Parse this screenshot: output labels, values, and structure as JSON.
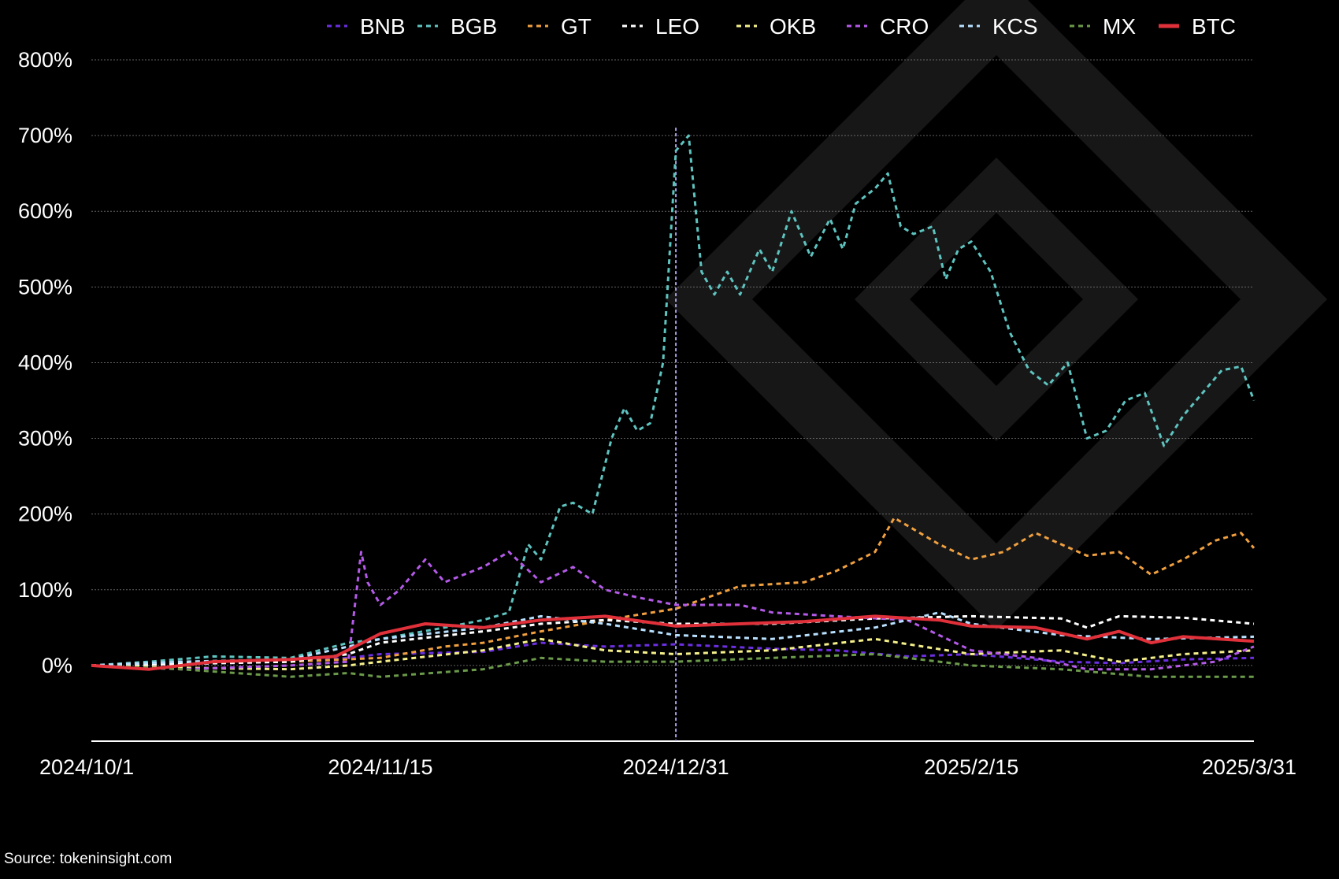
{
  "colors": {
    "background": "#000000",
    "grid": "#8c8c8c",
    "text": "#ffffff",
    "watermark": "#1a1a1a",
    "marker_line": "#a9a3e6"
  },
  "source": "Source: tokeninsight.com",
  "chart_data": {
    "type": "line",
    "title": "",
    "xlabel": "",
    "ylabel": "",
    "x_ticks": [
      "2024/10/1",
      "2024/11/15",
      "2024/12/31",
      "2025/2/15",
      "2025/3/31"
    ],
    "x_range": [
      "2024/10/1",
      "2025/3/31"
    ],
    "y_ticks": [
      0,
      100,
      200,
      300,
      400,
      500,
      600,
      700,
      800
    ],
    "y_tick_format": "%",
    "ylim": [
      -100,
      800
    ],
    "grid": true,
    "legend": "top",
    "vertical_marker": "2024/12/31",
    "watermark": "binance-logo",
    "series": [
      {
        "name": "BNB",
        "color": "#6b2fe0",
        "style": "dashed",
        "points": [
          [
            "2024/10/1",
            0
          ],
          [
            "2024/10/15",
            2
          ],
          [
            "2024/11/1",
            5
          ],
          [
            "2024/11/10",
            10
          ],
          [
            "2024/11/15",
            15
          ],
          [
            "2024/12/1",
            18
          ],
          [
            "2024/12/10",
            30
          ],
          [
            "2024/12/20",
            25
          ],
          [
            "2024/12/31",
            28
          ],
          [
            "2025/1/15",
            22
          ],
          [
            "2025/1/25",
            20
          ],
          [
            "2025/2/5",
            12
          ],
          [
            "2025/2/15",
            15
          ],
          [
            "2025/3/1",
            5
          ],
          [
            "2025/3/10",
            3
          ],
          [
            "2025/3/20",
            8
          ],
          [
            "2025/3/31",
            10
          ]
        ]
      },
      {
        "name": "BGB",
        "color": "#5ec4c0",
        "style": "dashed",
        "points": [
          [
            "2024/10/1",
            0
          ],
          [
            "2024/10/10",
            5
          ],
          [
            "2024/10/20",
            12
          ],
          [
            "2024/11/1",
            10
          ],
          [
            "2024/11/10",
            30
          ],
          [
            "2024/11/15",
            35
          ],
          [
            "2024/11/25",
            50
          ],
          [
            "2024/12/1",
            60
          ],
          [
            "2024/12/5",
            70
          ],
          [
            "2024/12/8",
            160
          ],
          [
            "2024/12/10",
            140
          ],
          [
            "2024/12/13",
            210
          ],
          [
            "2024/12/15",
            215
          ],
          [
            "2024/12/18",
            200
          ],
          [
            "2024/12/21",
            300
          ],
          [
            "2024/12/23",
            340
          ],
          [
            "2024/12/25",
            310
          ],
          [
            "2024/12/27",
            320
          ],
          [
            "2024/12/29",
            400
          ],
          [
            "2024/12/31",
            680
          ],
          [
            "2025/1/2",
            700
          ],
          [
            "2025/1/4",
            520
          ],
          [
            "2025/1/6",
            490
          ],
          [
            "2025/1/8",
            520
          ],
          [
            "2025/1/10",
            490
          ],
          [
            "2025/1/13",
            550
          ],
          [
            "2025/1/15",
            520
          ],
          [
            "2025/1/18",
            600
          ],
          [
            "2025/1/21",
            540
          ],
          [
            "2025/1/24",
            590
          ],
          [
            "2025/1/26",
            550
          ],
          [
            "2025/1/28",
            610
          ],
          [
            "2025/1/31",
            630
          ],
          [
            "2025/2/2",
            650
          ],
          [
            "2025/2/4",
            580
          ],
          [
            "2025/2/6",
            570
          ],
          [
            "2025/2/9",
            580
          ],
          [
            "2025/2/11",
            510
          ],
          [
            "2025/2/13",
            550
          ],
          [
            "2025/2/15",
            560
          ],
          [
            "2025/2/18",
            520
          ],
          [
            "2025/2/21",
            440
          ],
          [
            "2025/2/24",
            390
          ],
          [
            "2025/2/27",
            370
          ],
          [
            "2025/3/2",
            400
          ],
          [
            "2025/3/5",
            300
          ],
          [
            "2025/3/8",
            310
          ],
          [
            "2025/3/11",
            350
          ],
          [
            "2025/3/14",
            360
          ],
          [
            "2025/3/17",
            290
          ],
          [
            "2025/3/20",
            330
          ],
          [
            "2025/3/23",
            360
          ],
          [
            "2025/3/26",
            390
          ],
          [
            "2025/3/29",
            395
          ],
          [
            "2025/3/31",
            350
          ]
        ]
      },
      {
        "name": "GT",
        "color": "#f0a040",
        "style": "dashed",
        "points": [
          [
            "2024/10/1",
            0
          ],
          [
            "2024/10/15",
            3
          ],
          [
            "2024/11/1",
            5
          ],
          [
            "2024/11/15",
            10
          ],
          [
            "2024/11/25",
            25
          ],
          [
            "2024/12/1",
            30
          ],
          [
            "2024/12/10",
            45
          ],
          [
            "2024/12/20",
            60
          ],
          [
            "2024/12/31",
            75
          ],
          [
            "2025/1/5",
            90
          ],
          [
            "2025/1/10",
            105
          ],
          [
            "2025/1/20",
            110
          ],
          [
            "2025/1/25",
            125
          ],
          [
            "2025/1/31",
            150
          ],
          [
            "2025/2/3",
            195
          ],
          [
            "2025/2/6",
            180
          ],
          [
            "2025/2/10",
            160
          ],
          [
            "2025/2/15",
            140
          ],
          [
            "2025/2/20",
            150
          ],
          [
            "2025/2/25",
            175
          ],
          [
            "2025/3/1",
            160
          ],
          [
            "2025/3/5",
            145
          ],
          [
            "2025/3/10",
            150
          ],
          [
            "2025/3/15",
            120
          ],
          [
            "2025/3/20",
            140
          ],
          [
            "2025/3/25",
            165
          ],
          [
            "2025/3/29",
            175
          ],
          [
            "2025/3/31",
            155
          ]
        ]
      },
      {
        "name": "LEO",
        "color": "#ffffff",
        "style": "dashed",
        "points": [
          [
            "2024/10/1",
            0
          ],
          [
            "2024/10/15",
            2
          ],
          [
            "2024/11/1",
            5
          ],
          [
            "2024/11/10",
            15
          ],
          [
            "2024/11/15",
            30
          ],
          [
            "2024/12/1",
            45
          ],
          [
            "2024/12/10",
            55
          ],
          [
            "2024/12/20",
            60
          ],
          [
            "2024/12/31",
            55
          ],
          [
            "2025/1/15",
            55
          ],
          [
            "2025/1/31",
            62
          ],
          [
            "2025/2/15",
            65
          ],
          [
            "2025/3/1",
            62
          ],
          [
            "2025/3/5",
            50
          ],
          [
            "2025/3/10",
            65
          ],
          [
            "2025/3/20",
            63
          ],
          [
            "2025/3/31",
            55
          ]
        ]
      },
      {
        "name": "OKB",
        "color": "#f5f08a",
        "style": "dashed",
        "points": [
          [
            "2024/10/1",
            0
          ],
          [
            "2024/10/15",
            -3
          ],
          [
            "2024/11/1",
            -5
          ],
          [
            "2024/11/10",
            0
          ],
          [
            "2024/11/15",
            5
          ],
          [
            "2024/12/1",
            20
          ],
          [
            "2024/12/10",
            35
          ],
          [
            "2024/12/20",
            20
          ],
          [
            "2024/12/31",
            15
          ],
          [
            "2025/1/15",
            20
          ],
          [
            "2025/1/31",
            35
          ],
          [
            "2025/2/15",
            15
          ],
          [
            "2025/3/1",
            20
          ],
          [
            "2025/3/10",
            5
          ],
          [
            "2025/3/20",
            15
          ],
          [
            "2025/3/31",
            20
          ]
        ]
      },
      {
        "name": "CRO",
        "color": "#b45ae8",
        "style": "dashed",
        "points": [
          [
            "2024/10/1",
            0
          ],
          [
            "2024/10/15",
            -5
          ],
          [
            "2024/11/1",
            0
          ],
          [
            "2024/11/10",
            5
          ],
          [
            "2024/11/12",
            150
          ],
          [
            "2024/11/13",
            110
          ],
          [
            "2024/11/15",
            80
          ],
          [
            "2024/11/18",
            100
          ],
          [
            "2024/11/22",
            140
          ],
          [
            "2024/11/25",
            110
          ],
          [
            "2024/12/1",
            130
          ],
          [
            "2024/12/5",
            150
          ],
          [
            "2024/12/10",
            110
          ],
          [
            "2024/12/15",
            130
          ],
          [
            "2024/12/20",
            100
          ],
          [
            "2024/12/25",
            90
          ],
          [
            "2024/12/31",
            80
          ],
          [
            "2025/1/10",
            80
          ],
          [
            "2025/1/15",
            70
          ],
          [
            "2025/1/25",
            65
          ],
          [
            "2025/2/5",
            60
          ],
          [
            "2025/2/15",
            20
          ],
          [
            "2025/2/25",
            10
          ],
          [
            "2025/3/5",
            -5
          ],
          [
            "2025/3/15",
            -5
          ],
          [
            "2025/3/25",
            5
          ],
          [
            "2025/3/31",
            25
          ]
        ]
      },
      {
        "name": "KCS",
        "color": "#b8e0ff",
        "style": "dashed",
        "points": [
          [
            "2024/10/1",
            0
          ],
          [
            "2024/10/15",
            5
          ],
          [
            "2024/11/1",
            8
          ],
          [
            "2024/11/10",
            25
          ],
          [
            "2024/11/15",
            35
          ],
          [
            "2024/12/1",
            50
          ],
          [
            "2024/12/10",
            65
          ],
          [
            "2024/12/20",
            55
          ],
          [
            "2024/12/31",
            40
          ],
          [
            "2025/1/15",
            35
          ],
          [
            "2025/1/31",
            50
          ],
          [
            "2025/2/10",
            70
          ],
          [
            "2025/2/15",
            55
          ],
          [
            "2025/3/1",
            40
          ],
          [
            "2025/3/15",
            35
          ],
          [
            "2025/3/31",
            38
          ]
        ]
      },
      {
        "name": "MX",
        "color": "#6b9a4a",
        "style": "dashed",
        "points": [
          [
            "2024/10/1",
            0
          ],
          [
            "2024/10/15",
            -5
          ],
          [
            "2024/11/1",
            -15
          ],
          [
            "2024/11/10",
            -10
          ],
          [
            "2024/11/15",
            -15
          ],
          [
            "2024/12/1",
            -5
          ],
          [
            "2024/12/10",
            10
          ],
          [
            "2024/12/20",
            5
          ],
          [
            "2024/12/31",
            5
          ],
          [
            "2025/1/15",
            10
          ],
          [
            "2025/1/31",
            15
          ],
          [
            "2025/2/15",
            0
          ],
          [
            "2025/3/1",
            -5
          ],
          [
            "2025/3/15",
            -15
          ],
          [
            "2025/3/31",
            -15
          ]
        ]
      },
      {
        "name": "BTC",
        "color": "#e0303a",
        "style": "solid",
        "points": [
          [
            "2024/10/1",
            0
          ],
          [
            "2024/10/10",
            -5
          ],
          [
            "2024/10/20",
            5
          ],
          [
            "2024/11/1",
            8
          ],
          [
            "2024/11/8",
            12
          ],
          [
            "2024/11/15",
            42
          ],
          [
            "2024/11/22",
            55
          ],
          [
            "2024/12/1",
            50
          ],
          [
            "2024/12/10",
            60
          ],
          [
            "2024/12/20",
            65
          ],
          [
            "2024/12/31",
            52
          ],
          [
            "2025/1/10",
            55
          ],
          [
            "2025/1/20",
            58
          ],
          [
            "2025/1/31",
            65
          ],
          [
            "2025/2/10",
            60
          ],
          [
            "2025/2/15",
            52
          ],
          [
            "2025/2/25",
            50
          ],
          [
            "2025/3/5",
            35
          ],
          [
            "2025/3/10",
            45
          ],
          [
            "2025/3/15",
            30
          ],
          [
            "2025/3/20",
            38
          ],
          [
            "2025/3/31",
            32
          ]
        ]
      }
    ]
  }
}
